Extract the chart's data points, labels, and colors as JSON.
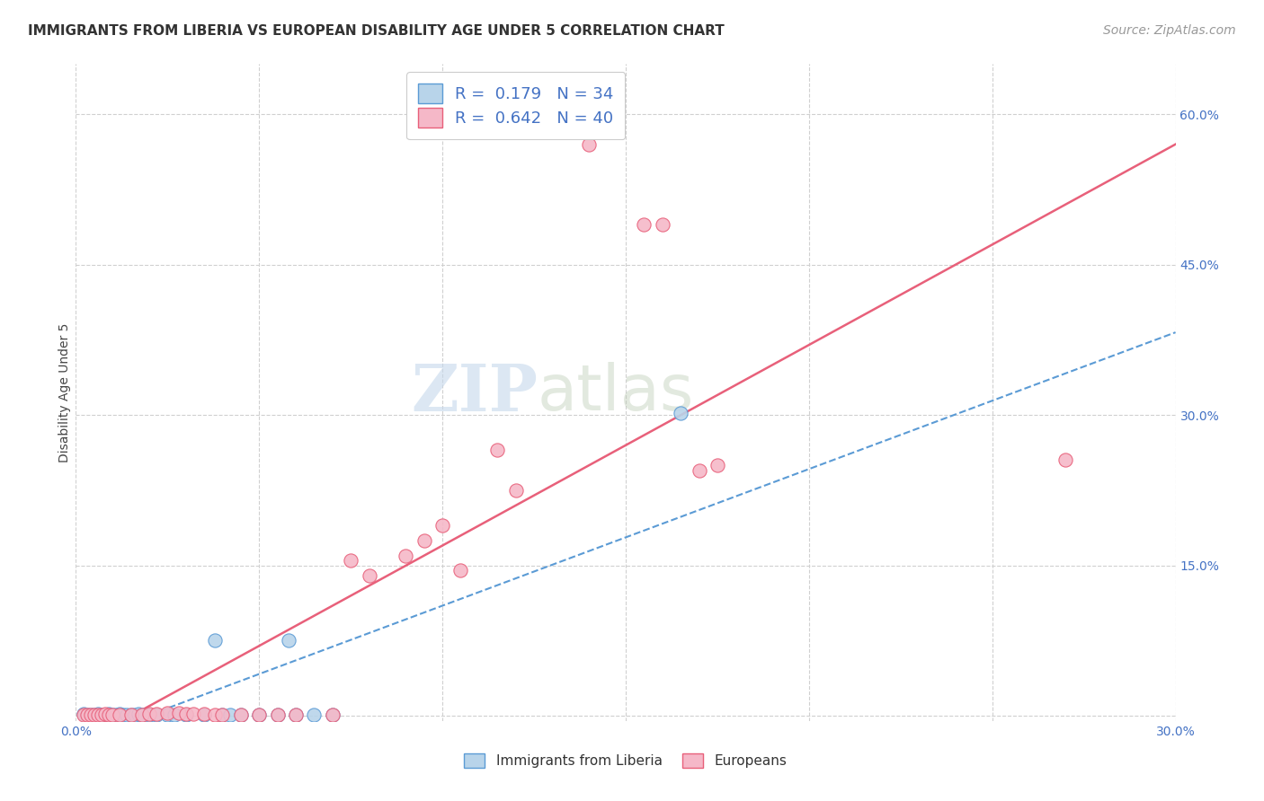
{
  "title": "IMMIGRANTS FROM LIBERIA VS EUROPEAN DISABILITY AGE UNDER 5 CORRELATION CHART",
  "source": "Source: ZipAtlas.com",
  "ylabel": "Disability Age Under 5",
  "xlim": [
    0.0,
    0.3
  ],
  "ylim": [
    -0.005,
    0.65
  ],
  "right_yticks": [
    0.0,
    0.15,
    0.3,
    0.45,
    0.6
  ],
  "right_ytick_labels": [
    "",
    "15.0%",
    "30.0%",
    "45.0%",
    "60.0%"
  ],
  "legend_blue_R": "0.179",
  "legend_blue_N": "34",
  "legend_pink_R": "0.642",
  "legend_pink_N": "40",
  "watermark_zip": "ZIP",
  "watermark_atlas": "atlas",
  "blue_color": "#b8d4ea",
  "pink_color": "#f5b8c8",
  "blue_line_color": "#5b9bd5",
  "pink_line_color": "#e8607a",
  "blue_scatter": [
    [
      0.002,
      0.002
    ],
    [
      0.003,
      0.001
    ],
    [
      0.004,
      0.001
    ],
    [
      0.005,
      0.001
    ],
    [
      0.006,
      0.002
    ],
    [
      0.007,
      0.001
    ],
    [
      0.008,
      0.001
    ],
    [
      0.009,
      0.002
    ],
    [
      0.01,
      0.001
    ],
    [
      0.011,
      0.001
    ],
    [
      0.012,
      0.002
    ],
    [
      0.013,
      0.001
    ],
    [
      0.014,
      0.001
    ],
    [
      0.015,
      0.001
    ],
    [
      0.016,
      0.001
    ],
    [
      0.017,
      0.002
    ],
    [
      0.018,
      0.001
    ],
    [
      0.02,
      0.001
    ],
    [
      0.022,
      0.001
    ],
    [
      0.025,
      0.001
    ],
    [
      0.027,
      0.001
    ],
    [
      0.03,
      0.001
    ],
    [
      0.035,
      0.001
    ],
    [
      0.04,
      0.001
    ],
    [
      0.042,
      0.001
    ],
    [
      0.045,
      0.001
    ],
    [
      0.05,
      0.001
    ],
    [
      0.055,
      0.001
    ],
    [
      0.06,
      0.001
    ],
    [
      0.065,
      0.001
    ],
    [
      0.07,
      0.001
    ],
    [
      0.038,
      0.075
    ],
    [
      0.058,
      0.075
    ],
    [
      0.165,
      0.302
    ]
  ],
  "pink_scatter": [
    [
      0.002,
      0.001
    ],
    [
      0.003,
      0.001
    ],
    [
      0.004,
      0.001
    ],
    [
      0.005,
      0.001
    ],
    [
      0.006,
      0.001
    ],
    [
      0.007,
      0.001
    ],
    [
      0.008,
      0.002
    ],
    [
      0.009,
      0.001
    ],
    [
      0.01,
      0.001
    ],
    [
      0.012,
      0.001
    ],
    [
      0.015,
      0.001
    ],
    [
      0.018,
      0.001
    ],
    [
      0.02,
      0.002
    ],
    [
      0.022,
      0.002
    ],
    [
      0.025,
      0.003
    ],
    [
      0.028,
      0.003
    ],
    [
      0.03,
      0.002
    ],
    [
      0.032,
      0.002
    ],
    [
      0.035,
      0.002
    ],
    [
      0.038,
      0.001
    ],
    [
      0.04,
      0.001
    ],
    [
      0.045,
      0.001
    ],
    [
      0.05,
      0.001
    ],
    [
      0.055,
      0.001
    ],
    [
      0.06,
      0.001
    ],
    [
      0.07,
      0.001
    ],
    [
      0.075,
      0.155
    ],
    [
      0.08,
      0.14
    ],
    [
      0.09,
      0.16
    ],
    [
      0.095,
      0.175
    ],
    [
      0.1,
      0.19
    ],
    [
      0.105,
      0.145
    ],
    [
      0.115,
      0.265
    ],
    [
      0.12,
      0.225
    ],
    [
      0.14,
      0.57
    ],
    [
      0.155,
      0.49
    ],
    [
      0.16,
      0.49
    ],
    [
      0.17,
      0.245
    ],
    [
      0.175,
      0.25
    ],
    [
      0.27,
      0.255
    ]
  ],
  "title_fontsize": 11,
  "source_fontsize": 10,
  "axis_label_fontsize": 10,
  "tick_fontsize": 10,
  "legend_fontsize": 13
}
